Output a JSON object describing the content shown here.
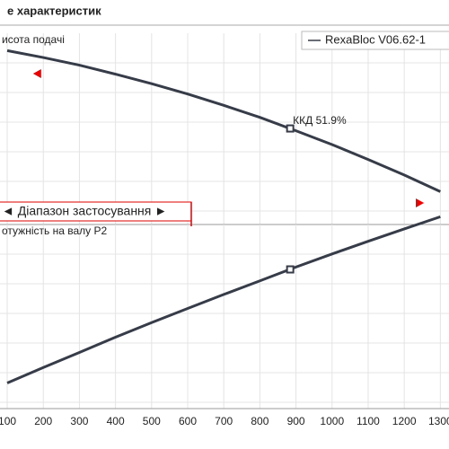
{
  "title": "е характеристик",
  "chart_data": [
    {
      "type": "line",
      "y_label": "исота подачі",
      "x": [
        100,
        200,
        300,
        400,
        500,
        600,
        700,
        800,
        900,
        1000,
        1100,
        1200,
        1300
      ],
      "series": [
        {
          "name": "RexaBloc V06.62-1",
          "color": "#363c48",
          "values": [
            90.9,
            87.3,
            83.3,
            78.6,
            73.6,
            68.2,
            62.3,
            56.0,
            49.0,
            41.8,
            34.0,
            25.9,
            17.2
          ]
        }
      ],
      "xlim": [
        80,
        1324
      ],
      "ylim": [
        0,
        100
      ],
      "point": {
        "x": 884,
        "y": 50.2
      },
      "annotation": "ККД   51.9%",
      "range": [
        184,
        1242
      ],
      "range_label": "◄ Діапазон застосування ►",
      "grid": true
    },
    {
      "type": "line",
      "y_label": "отужність на валу  P2",
      "x": [
        100,
        200,
        300,
        400,
        500,
        600,
        700,
        800,
        900,
        1000,
        1100,
        1200,
        1300
      ],
      "values": [
        13.9,
        22.3,
        30.5,
        38.8,
        46.7,
        54.4,
        62.0,
        69.4,
        76.9,
        84.0,
        90.9,
        97.6,
        104.2
      ],
      "color": "#363c48",
      "xlim": [
        80,
        1324
      ],
      "ylim": [
        0,
        100
      ],
      "point": {
        "x": 884,
        "y": 75.6
      },
      "xticks": [
        100,
        200,
        300,
        400,
        500,
        600,
        700,
        800,
        900,
        1000,
        1100,
        1200,
        1300
      ],
      "grid": true
    }
  ]
}
